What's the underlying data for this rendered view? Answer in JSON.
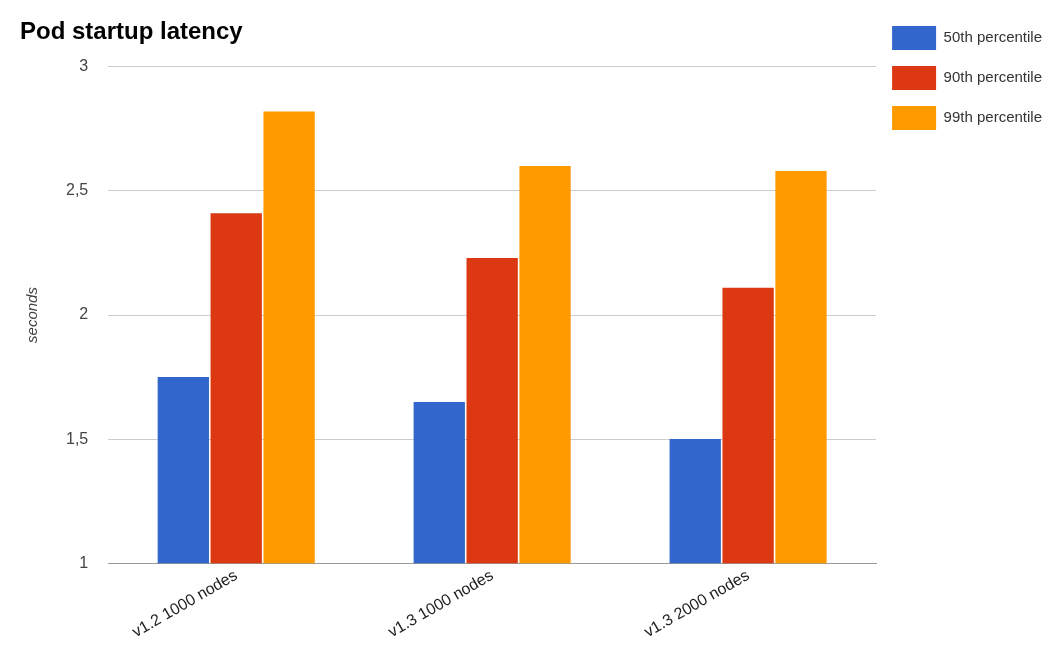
{
  "chart_data": {
    "type": "bar",
    "title": "Pod startup latency",
    "ylabel": "seconds",
    "categories": [
      "v1.2 1000 nodes",
      "v1.3 1000 nodes",
      "v1.3 2000 nodes"
    ],
    "series": [
      {
        "name": "50th percentile",
        "color": "#3366cc",
        "values": [
          1.75,
          1.65,
          1.5
        ]
      },
      {
        "name": "90th percentile",
        "color": "#dc3912",
        "values": [
          2.41,
          2.23,
          2.11
        ]
      },
      {
        "name": "99th percentile",
        "color": "#ff9900",
        "values": [
          2.82,
          2.6,
          2.58
        ]
      }
    ],
    "ylim": [
      1,
      3
    ],
    "yticks": [
      1,
      {
        "value": 1.5,
        "label": "1,5"
      },
      2,
      {
        "value": 2.5,
        "label": "2,5"
      },
      3
    ],
    "grid": "y",
    "legend": "top right"
  }
}
